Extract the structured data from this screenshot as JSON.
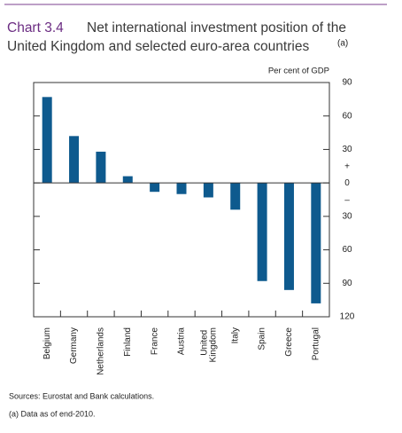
{
  "chart_data": {
    "type": "bar",
    "label": "Chart 3.4",
    "title_lines": [
      "Net international investment position of the",
      "United Kingdom and selected euro-area countries"
    ],
    "title_note": "(a)",
    "unit": "Per cent of GDP",
    "sign_labels": [
      "+",
      "–"
    ],
    "categories": [
      "Belgium",
      "Germany",
      "Netherlands",
      "Finland",
      "France",
      "Austria",
      "United Kingdom",
      "Italy",
      "Spain",
      "Greece",
      "Portugal"
    ],
    "values": [
      77,
      42,
      28,
      6,
      -8,
      -10,
      -13,
      -24,
      -88,
      -96,
      -108
    ],
    "color": "#0e5a8e",
    "ylim": [
      -120,
      90
    ],
    "yticks": [
      {
        "value": -120,
        "label": "120"
      },
      {
        "value": -90,
        "label": "90"
      },
      {
        "value": -60,
        "label": "60"
      },
      {
        "value": -30,
        "label": "30"
      },
      0,
      30,
      60,
      90
    ],
    "sources": "Sources:  Eurostat and Bank calculations.",
    "footnote": "(a)  Data as of end-2010."
  }
}
